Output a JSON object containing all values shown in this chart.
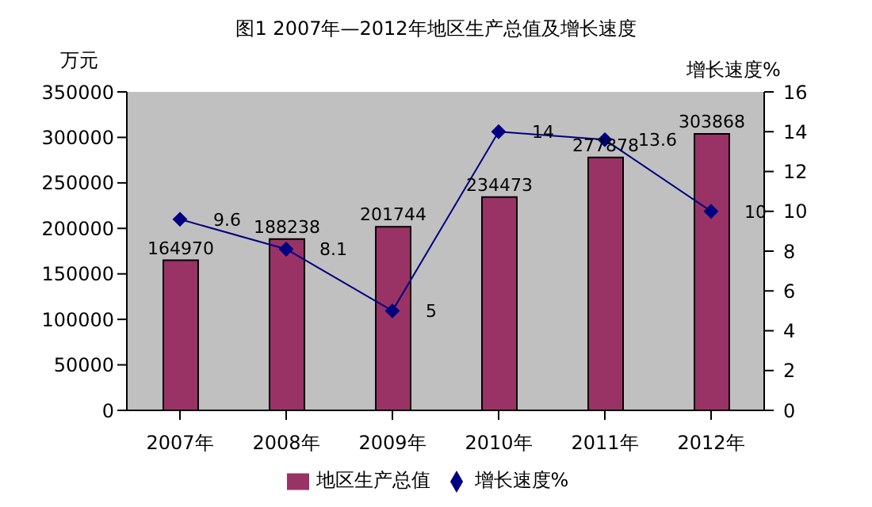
{
  "chart_data": {
    "type": "bar",
    "title": "图1  2007年—2012年地区生产总值及增长速度",
    "ylabel": "万元",
    "y2label": "增长速度%",
    "categories": [
      "2007年",
      "2008年",
      "2009年",
      "2010年",
      "2011年",
      "2012年"
    ],
    "series": [
      {
        "name": "地区生产总值",
        "color": "#993366",
        "values": [
          164970,
          188238,
          201744,
          234473,
          277878,
          303868
        ]
      },
      {
        "name": "增长速度%",
        "type": "line",
        "axis": "y2",
        "color": "#000080",
        "marker": "diamond",
        "values": [
          9.6,
          8.1,
          5,
          14,
          13.6,
          10
        ]
      }
    ],
    "ylim": [
      0,
      350000
    ],
    "yticks": [
      0,
      50000,
      100000,
      150000,
      200000,
      250000,
      300000,
      350000
    ],
    "y2lim": [
      0,
      16
    ],
    "y2ticks": [
      0,
      2,
      4,
      6,
      8,
      10,
      12,
      14,
      16
    ],
    "data_labels": true,
    "legend": "bottom"
  }
}
